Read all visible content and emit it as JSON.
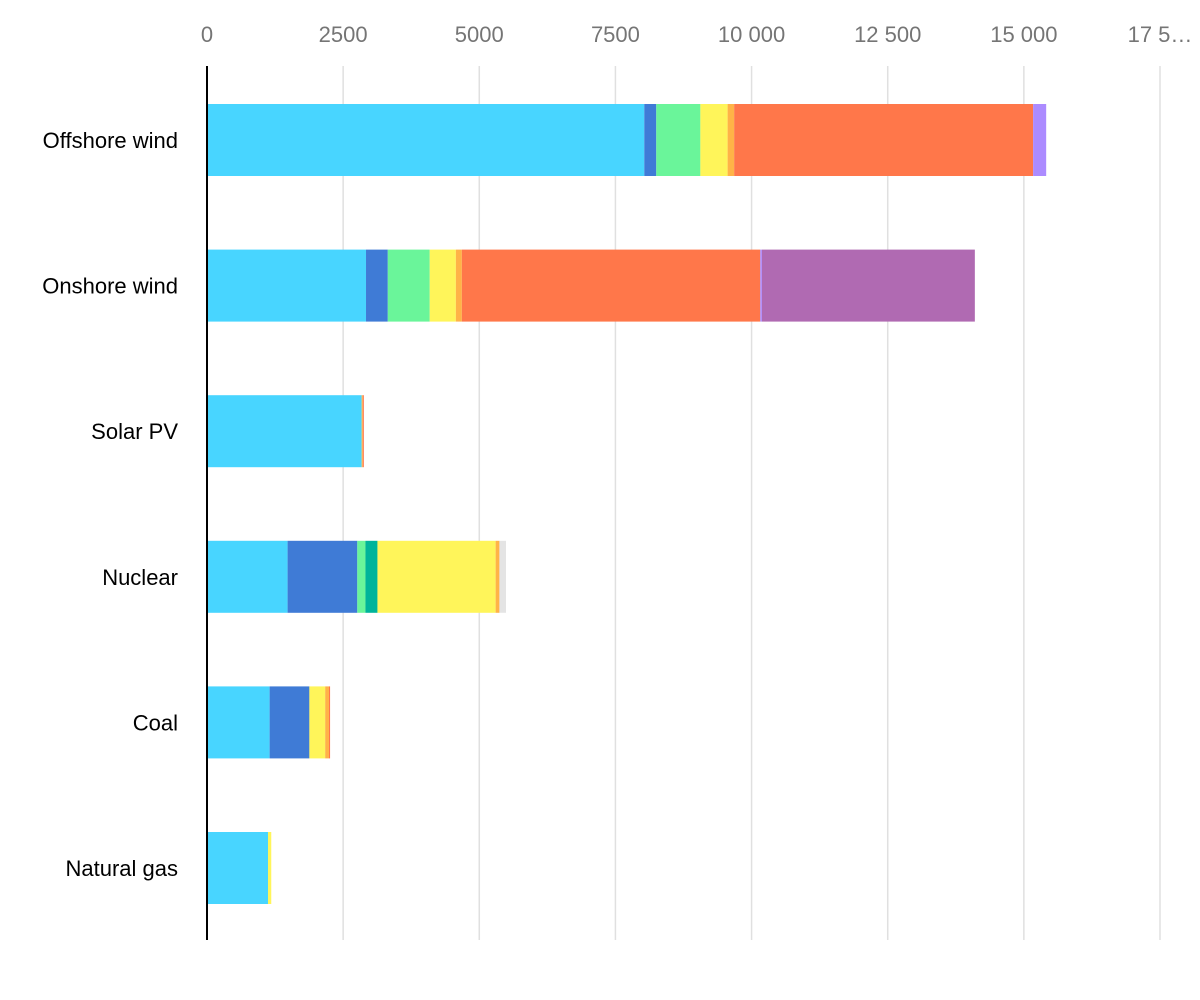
{
  "chart_data": {
    "type": "bar",
    "orientation": "horizontal",
    "stacked": true,
    "title": "",
    "xlabel": "",
    "ylabel": "",
    "xlim": [
      0,
      17500
    ],
    "x_ticks": [
      0,
      2500,
      5000,
      7500,
      10000,
      12500,
      15000,
      17500
    ],
    "x_tick_labels": [
      "0",
      "2500",
      "5000",
      "7500",
      "10 000",
      "12 500",
      "15 000",
      "17 5…"
    ],
    "x_axis_position": "top",
    "grid": true,
    "legend": "none",
    "categories": [
      "Offshore wind",
      "Onshore wind",
      "Solar PV",
      "Nuclear",
      "Coal",
      "Natural gas"
    ],
    "series": [
      {
        "color": "#48d5ff",
        "values": [
          8030,
          2920,
          2840,
          1480,
          1150,
          1120
        ]
      },
      {
        "color": "#3f7bd6",
        "values": [
          220,
          400,
          0,
          1280,
          730,
          0
        ]
      },
      {
        "color": "#6af59a",
        "values": [
          810,
          770,
          0,
          150,
          0,
          0
        ]
      },
      {
        "color": "#00b49a",
        "values": [
          0,
          0,
          0,
          220,
          0,
          0
        ]
      },
      {
        "color": "#fff55a",
        "values": [
          500,
          480,
          0,
          2170,
          290,
          60
        ]
      },
      {
        "color": "#ffb347",
        "values": [
          120,
          110,
          20,
          70,
          70,
          0
        ]
      },
      {
        "color": "#ff774a",
        "values": [
          5490,
          5480,
          20,
          0,
          20,
          0
        ]
      },
      {
        "color": "#ac8bff",
        "values": [
          240,
          30,
          0,
          0,
          0,
          0
        ]
      },
      {
        "color": "#b06ab2",
        "values": [
          0,
          3910,
          0,
          0,
          0,
          0
        ]
      },
      {
        "color": "#e4e4e4",
        "values": [
          0,
          0,
          0,
          120,
          0,
          0
        ]
      }
    ],
    "colors": {
      "axis_line": "#000000",
      "grid_line": "#e0e0e0",
      "tick_text": "#757575",
      "category_text": "#000000"
    }
  }
}
